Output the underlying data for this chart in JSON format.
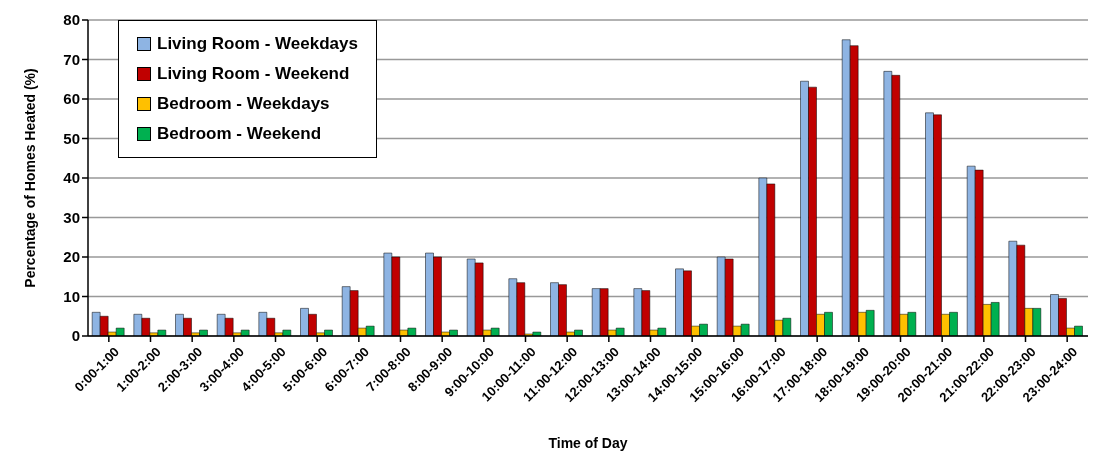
{
  "chart_data": {
    "type": "bar",
    "xlabel": "Time of Day",
    "ylabel": "Percentage of Homes Heated (%)",
    "categories": [
      "0:00-1:00",
      "1:00-2:00",
      "2:00-3:00",
      "3:00-4:00",
      "4:00-5:00",
      "5:00-6:00",
      "6:00-7:00",
      "7:00-8:00",
      "8:00-9:00",
      "9:00-10:00",
      "10:00-11:00",
      "11:00-12:00",
      "12:00-13:00",
      "13:00-14:00",
      "14:00-15:00",
      "15:00-16:00",
      "16:00-17:00",
      "17:00-18:00",
      "18:00-19:00",
      "19:00-20:00",
      "20:00-21:00",
      "21:00-22:00",
      "22:00-23:00",
      "23:00-24:00"
    ],
    "series": [
      {
        "name": "Living Room - Weekdays",
        "color": "#8eb4e3",
        "values": [
          6,
          5.5,
          5.5,
          5.5,
          6,
          7,
          12.5,
          21,
          21,
          19.5,
          14.5,
          13.5,
          12,
          12,
          17,
          20,
          40,
          64.5,
          75,
          67,
          56.5,
          43,
          24,
          10.5
        ]
      },
      {
        "name": "Living Room - Weekend",
        "color": "#c00000",
        "values": [
          5,
          4.5,
          4.5,
          4.5,
          4.5,
          5.5,
          11.5,
          20,
          20,
          18.5,
          13.5,
          13,
          12,
          11.5,
          16.5,
          19.5,
          38.5,
          63,
          73.5,
          66,
          56,
          42,
          23,
          9.5
        ]
      },
      {
        "name": "Bedroom - Weekdays",
        "color": "#ffc000",
        "values": [
          1,
          0.8,
          0.8,
          0.8,
          0.8,
          0.8,
          2,
          1.5,
          1,
          1.5,
          0.5,
          1,
          1.5,
          1.5,
          2.5,
          2.5,
          4,
          5.5,
          6,
          5.5,
          5.5,
          8,
          7,
          2
        ]
      },
      {
        "name": "Bedroom - Weekend",
        "color": "#00b050",
        "values": [
          2,
          1.5,
          1.5,
          1.5,
          1.5,
          1.5,
          2.5,
          2,
          1.5,
          2,
          1,
          1.5,
          2,
          2,
          3,
          3,
          4.5,
          6,
          6.5,
          6,
          6,
          8.5,
          7,
          2.5
        ]
      }
    ],
    "ylim": [
      0,
      80
    ],
    "yticks": [
      0,
      10,
      20,
      30,
      40,
      50,
      60,
      70,
      80
    ],
    "grid": "y",
    "legend": "top left"
  }
}
